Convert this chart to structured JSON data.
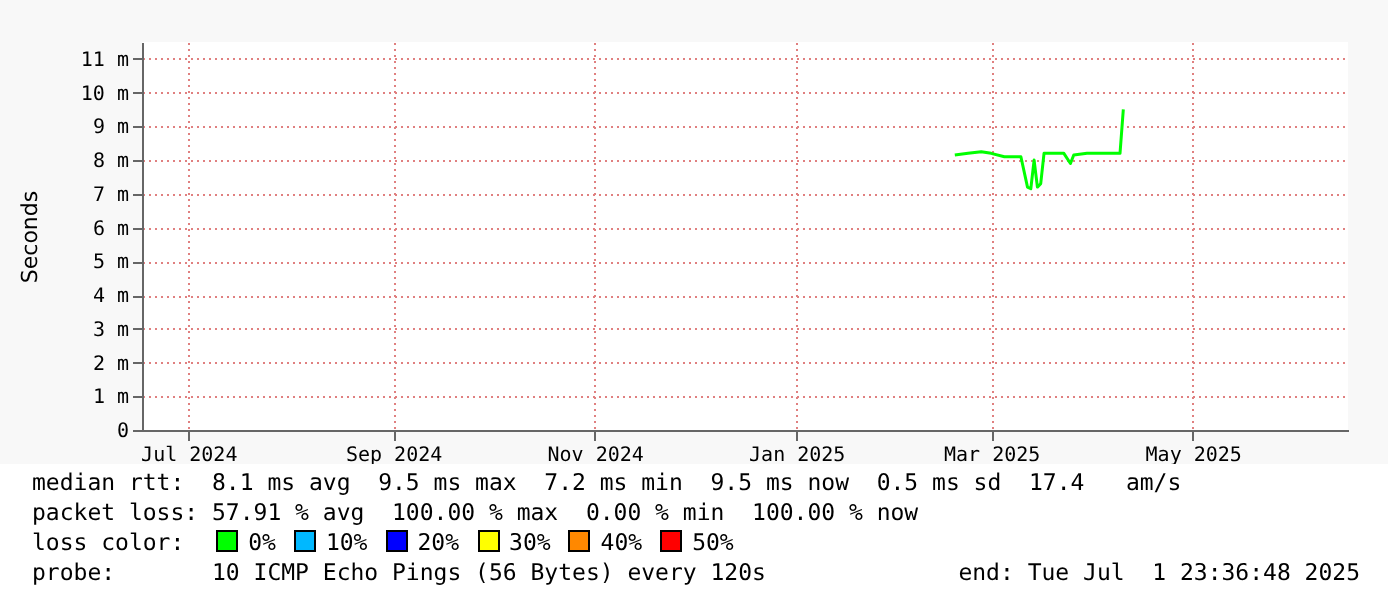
{
  "chart_data": {
    "type": "line",
    "ylabel": "Seconds",
    "x": [
      "2025-02-18",
      "2025-02-22",
      "2025-02-26",
      "2025-03-01",
      "2025-03-05",
      "2025-03-08",
      "2025-03-10",
      "2025-03-12",
      "2025-03-13",
      "2025-03-14",
      "2025-03-15",
      "2025-03-16",
      "2025-03-17",
      "2025-03-20",
      "2025-03-23",
      "2025-03-25",
      "2025-03-26",
      "2025-03-30",
      "2025-04-03",
      "2025-04-06",
      "2025-04-09",
      "2025-04-10"
    ],
    "series": [
      {
        "color": "#00ff00",
        "values": [
          8.15,
          8.2,
          8.25,
          8.2,
          8.1,
          8.1,
          8.1,
          7.2,
          7.15,
          8.0,
          7.2,
          7.3,
          8.2,
          8.2,
          8.2,
          7.9,
          8.15,
          8.2,
          8.2,
          8.2,
          8.2,
          9.5
        ]
      }
    ],
    "xlim": [
      "2024-06-17",
      "2025-06-17"
    ],
    "xticks": [
      {
        "value": "2024-07-01",
        "label": "Jul 2024"
      },
      {
        "value": "2024-09-01",
        "label": "Sep 2024"
      },
      {
        "value": "2024-11-01",
        "label": "Nov 2024"
      },
      {
        "value": "2025-01-01",
        "label": "Jan 2025"
      },
      {
        "value": "2025-03-01",
        "label": "Mar 2025"
      },
      {
        "value": "2025-05-01",
        "label": "May 2025"
      }
    ],
    "ylim": [
      0,
      11.5
    ],
    "yticks": [
      0,
      {
        "value": 1,
        "label": "1 m"
      },
      {
        "value": 2,
        "label": "2 m"
      },
      {
        "value": 3,
        "label": "3 m"
      },
      {
        "value": 4,
        "label": "4 m"
      },
      {
        "value": 5,
        "label": "5 m"
      },
      {
        "value": 6,
        "label": "6 m"
      },
      {
        "value": 7,
        "label": "7 m"
      },
      {
        "value": 8,
        "label": "8 m"
      },
      {
        "value": 9,
        "label": "9 m"
      },
      {
        "value": 10,
        "label": "10 m"
      },
      {
        "value": 11,
        "label": "11 m"
      }
    ],
    "grid": true,
    "marker": "none",
    "line_style": "solid",
    "annotations": [
      "median rtt:  8.1 ms avg  9.5 ms max  7.2 ms min  9.5 ms now  0.5 ms sd  17.4   am/s",
      "packet loss: 57.91 % avg  100.00 % max  0.00 % min  100.00 % now",
      "loss color:",
      "0%",
      "10%",
      "20%",
      "30%",
      "40%",
      "50%",
      "probe:       10 ICMP Echo Pings (56 Bytes) every 120s",
      "end: Tue Jul  1 23:36:48 2025"
    ]
  }
}
